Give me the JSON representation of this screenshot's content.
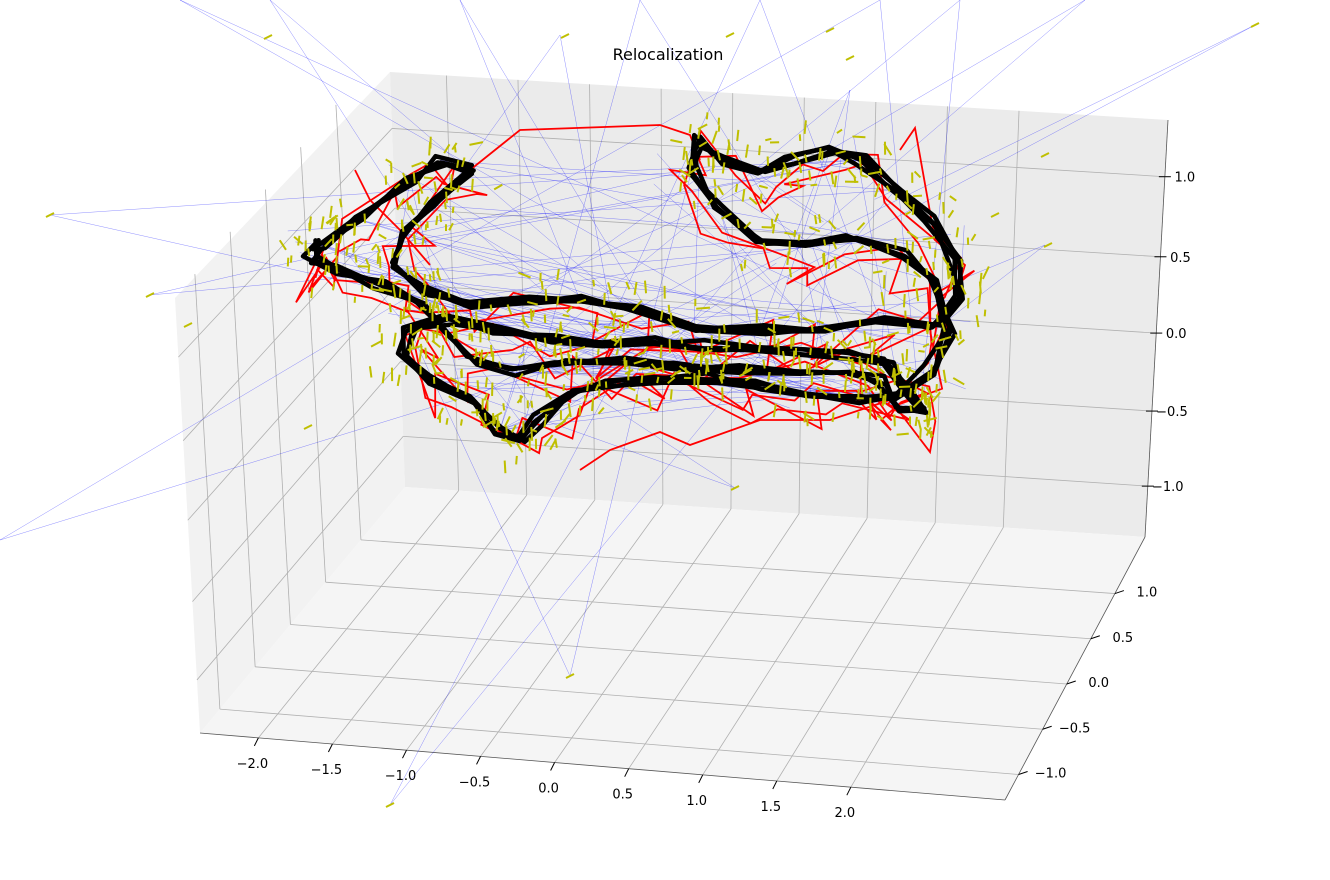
{
  "chart_data": {
    "type": "line3d",
    "title": "Relocalization",
    "xlabel": "",
    "ylabel": "",
    "zlabel": "",
    "grid": true,
    "legend": null,
    "x_ticks": [
      "−2.0",
      "−1.5",
      "−1.0",
      "−0.5",
      "0.0",
      "0.5",
      "1.0",
      "1.5",
      "2.0"
    ],
    "y_ticks": [
      "−1.0",
      "−0.5",
      "0.0",
      "0.5",
      "1.0"
    ],
    "z_ticks": [
      "−1.0",
      "−0.5",
      "0.0",
      "0.5",
      "1.0"
    ],
    "xlim": [
      -2.3,
      2.3
    ],
    "ylim": [
      -1.25,
      1.25
    ],
    "zlim": [
      -1.3,
      1.3
    ],
    "series": [
      {
        "role": "reference trajectory",
        "color": "#000000"
      },
      {
        "role": "relocalized trajectory",
        "color": "#ff0000"
      },
      {
        "role": "camera poses",
        "color": "#bfbf00"
      },
      {
        "role": "correspondence rays",
        "color": "#0000ff"
      }
    ]
  }
}
